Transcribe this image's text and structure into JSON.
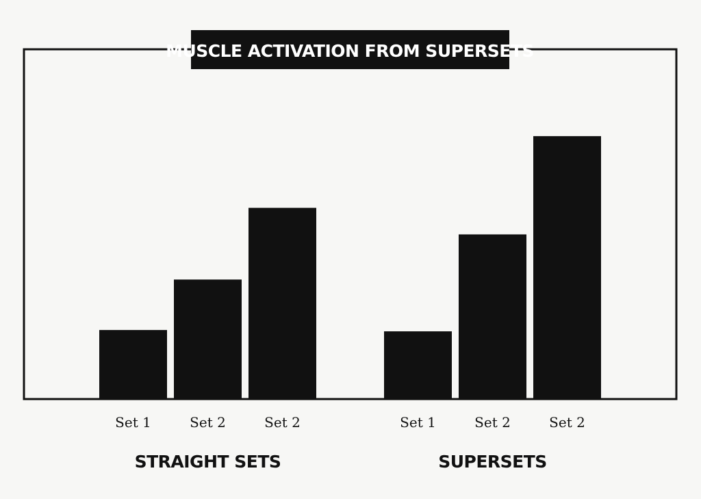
{
  "chart_data": {
    "type": "bar",
    "title": "MUSCLE ACTIVATION FROM SUPERSETS",
    "xlabel": "",
    "ylabel": "",
    "grid": false,
    "legend": "none",
    "ylim": [
      0,
      100
    ],
    "bar_color": "#111111",
    "groups": [
      {
        "label": "STRAIGHT SETS",
        "categories": [
          "Set 1",
          "Set 2",
          "Set 2"
        ],
        "values": [
          26,
          45,
          72
        ]
      },
      {
        "label": "SUPERSETS",
        "categories": [
          "Set 1",
          "Set 2",
          "Set 2"
        ],
        "values": [
          25.5,
          62,
          99
        ]
      }
    ]
  }
}
